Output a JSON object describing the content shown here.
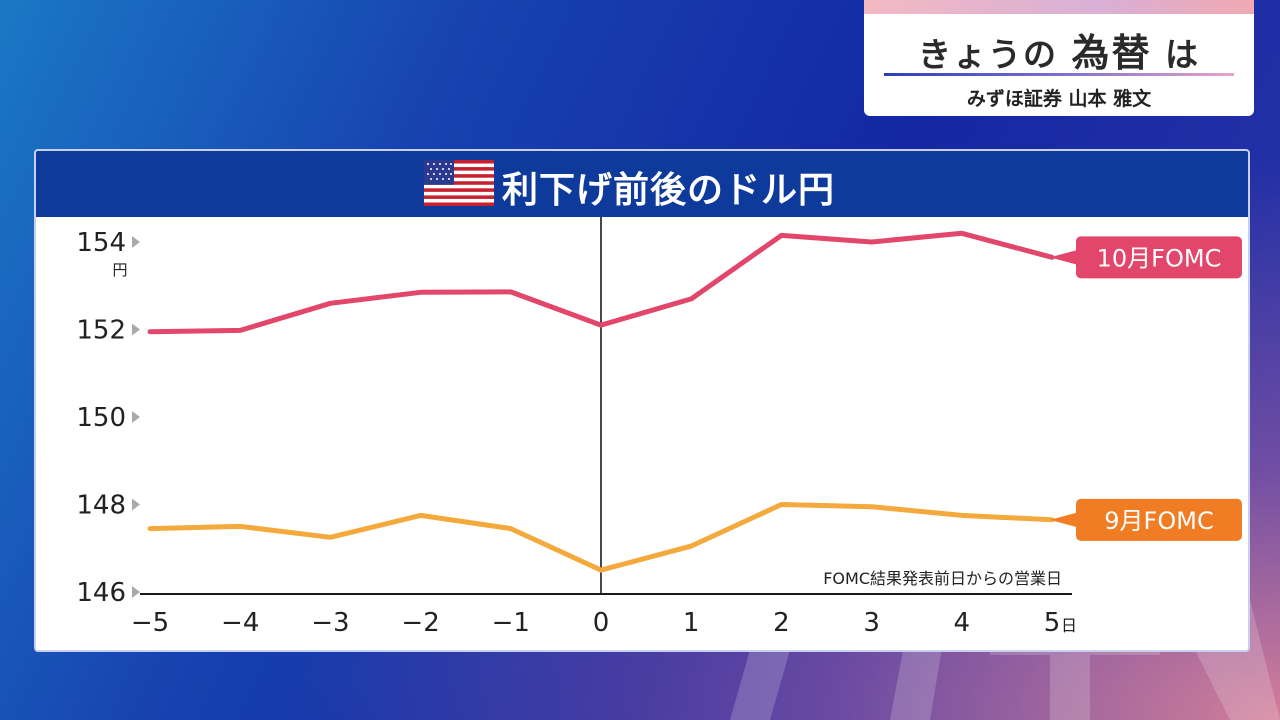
{
  "header_box": {
    "title_pre": "きょうの",
    "title_main": "為替",
    "title_post": "は",
    "subtitle": "みずほ証券 山本 雅文"
  },
  "panel": {
    "title": "利下げ前後のドル円",
    "flag_icon": "us-flag-icon"
  },
  "chart_data": {
    "type": "line",
    "title": "利下げ前後のドル円",
    "x": [
      -5,
      -4,
      -3,
      -2,
      -1,
      0,
      1,
      2,
      3,
      4,
      5
    ],
    "x_tick_labels": [
      "−5",
      "−4",
      "−3",
      "−2",
      "−1",
      "0",
      "1",
      "2",
      "3",
      "4",
      "5"
    ],
    "x_unit": "日",
    "y_ticks": [
      146,
      148,
      150,
      152,
      154
    ],
    "y_unit": "円",
    "ylim": [
      146,
      154.2
    ],
    "annotation": "FOMC結果発表前日からの営業日",
    "series": [
      {
        "name": "10月FOMC",
        "color": "#e2466a",
        "values": [
          151.95,
          151.98,
          152.6,
          152.85,
          152.86,
          152.1,
          152.7,
          154.15,
          154.0,
          154.2,
          153.65
        ]
      },
      {
        "name": "9月FOMC",
        "color": "#f4a93c",
        "label_color": "#f07c23",
        "values": [
          147.45,
          147.5,
          147.25,
          147.75,
          147.45,
          146.5,
          147.05,
          148.0,
          147.95,
          147.75,
          147.65
        ]
      }
    ]
  }
}
